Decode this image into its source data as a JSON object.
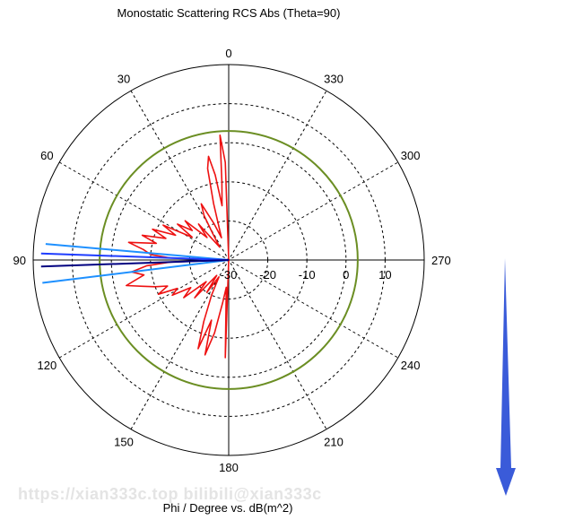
{
  "chart_data": {
    "type": "polar-line",
    "title": "Monostatic Scattering RCS Abs (Theta=90)",
    "xlabel": "Phi / Degree vs. dB(m^2)",
    "angle_ticks": [
      "0",
      "330",
      "300",
      "270",
      "240",
      "210",
      "180",
      "150",
      "120",
      "90",
      "60",
      "30"
    ],
    "radial_ticks": [
      "-30",
      "-20",
      "-10",
      "0",
      "10"
    ],
    "r_range": [
      -30,
      20
    ],
    "angle_direction": "counterclockwise from top",
    "grid": true,
    "series": [
      {
        "color": "#ee1111",
        "values": [
          [
            0,
            -30
          ],
          [
            2,
            -5
          ],
          [
            4,
            2
          ],
          [
            5,
            -10
          ],
          [
            7,
            -16
          ],
          [
            9,
            -8
          ],
          [
            11,
            -3
          ],
          [
            13,
            -6
          ],
          [
            15,
            -15
          ],
          [
            18,
            -24
          ],
          [
            22,
            -20
          ],
          [
            26,
            -14
          ],
          [
            29,
            -17
          ],
          [
            31,
            -22
          ],
          [
            35,
            -26
          ],
          [
            40,
            -18
          ],
          [
            44,
            -22
          ],
          [
            48,
            -15
          ],
          [
            51,
            -18
          ],
          [
            55,
            -14
          ],
          [
            58,
            -19
          ],
          [
            62,
            -11
          ],
          [
            65,
            -15
          ],
          [
            68,
            -9
          ],
          [
            71,
            -13
          ],
          [
            74,
            -7
          ],
          [
            77,
            -11
          ],
          [
            80,
            -4
          ],
          [
            83,
            -8
          ],
          [
            86,
            -10
          ],
          [
            88,
            -15
          ],
          [
            90,
            -30
          ],
          [
            92,
            -15
          ],
          [
            94,
            -9
          ],
          [
            97,
            -5
          ],
          [
            100,
            -8
          ],
          [
            104,
            -3
          ],
          [
            107,
            -7
          ],
          [
            110,
            -10
          ],
          [
            113,
            -13
          ],
          [
            116,
            -10
          ],
          [
            119,
            -15
          ],
          [
            122,
            -13
          ],
          [
            126,
            -18
          ],
          [
            130,
            -15
          ],
          [
            134,
            -22
          ],
          [
            138,
            -17
          ],
          [
            142,
            -25
          ],
          [
            146,
            -20
          ],
          [
            150,
            -25
          ],
          [
            154,
            -20
          ],
          [
            158,
            -13
          ],
          [
            161,
            -6
          ],
          [
            164,
            -14
          ],
          [
            166,
            -5
          ],
          [
            169,
            -11
          ],
          [
            172,
            -19
          ],
          [
            175,
            -23
          ],
          [
            178,
            -5
          ],
          [
            180,
            -30
          ]
        ]
      },
      {
        "color": "#6b8e23",
        "values": [
          [
            0,
            3
          ],
          [
            90,
            3
          ],
          [
            180,
            3
          ],
          [
            270,
            3
          ],
          [
            360,
            3
          ]
        ]
      },
      {
        "color": "#1e90ff",
        "values": [
          [
            0,
            -30
          ],
          [
            85,
            17
          ],
          [
            0,
            -30
          ],
          [
            97,
            18
          ]
        ]
      },
      {
        "color": "#1e3cff",
        "values": [
          [
            0,
            -30
          ],
          [
            88,
            18
          ]
        ]
      },
      {
        "color": "#000080",
        "values": [
          [
            0,
            -30
          ],
          [
            92,
            18
          ]
        ]
      }
    ]
  },
  "watermark": "https://xian333c.top bilibili@xian333c",
  "scroll_arrow_color": "#3a5bd9"
}
